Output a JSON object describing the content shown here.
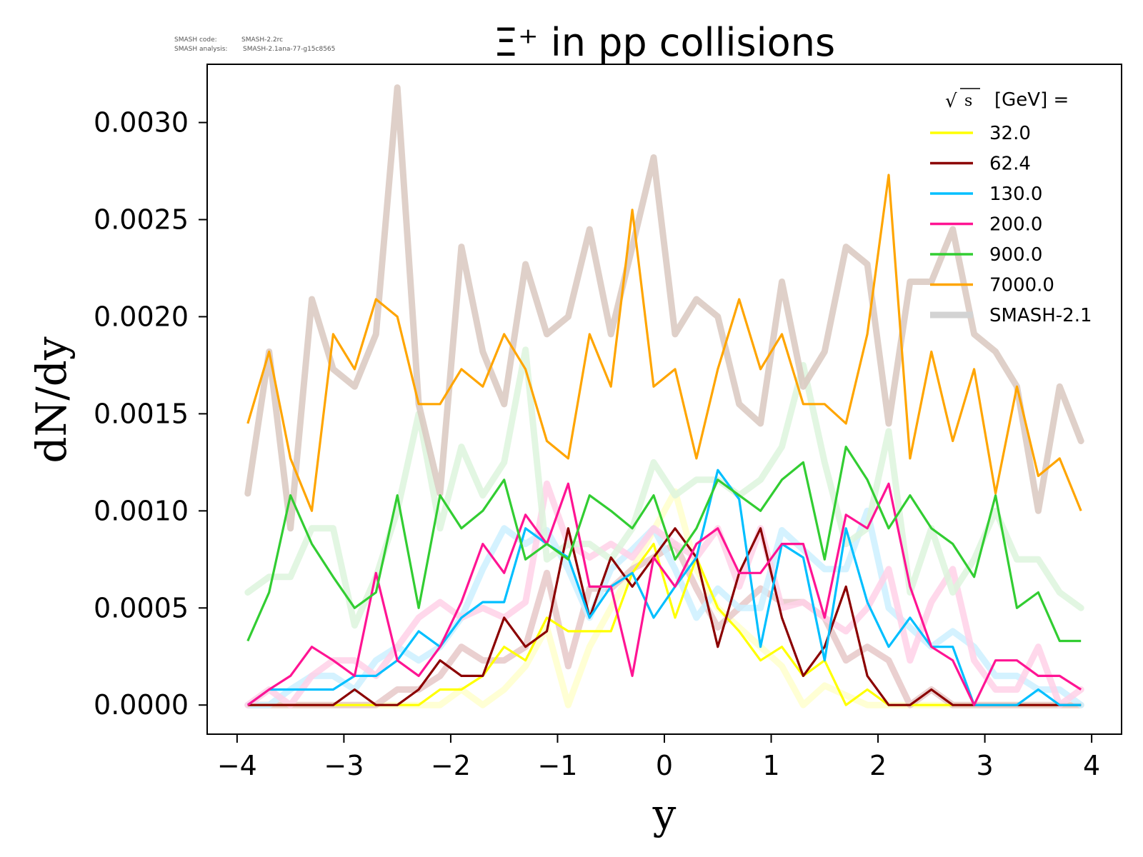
{
  "meta": {
    "smash_code_label": "SMASH code:",
    "smash_code_value": "SMASH-2.2rc",
    "smash_analysis_label": "SMASH analysis:",
    "smash_analysis_value": "SMASH-2.1ana-77-g15c8565"
  },
  "chart_data": {
    "type": "line",
    "title": "Ξ⁺ in pp collisions",
    "xlabel": "y",
    "ylabel": "dN/dy",
    "xlim": [
      -4.28,
      4.28
    ],
    "ylim": [
      -0.00015,
      0.0033
    ],
    "xticks": [
      -4,
      -3,
      -2,
      -1,
      0,
      1,
      2,
      3,
      4
    ],
    "xtick_labels": [
      "−4",
      "−3",
      "−2",
      "−1",
      "0",
      "1",
      "2",
      "3",
      "4"
    ],
    "yticks": [
      0,
      0.0005,
      0.001,
      0.0015,
      0.002,
      0.0025,
      0.003
    ],
    "ytick_labels": [
      "0.0000",
      "0.0005",
      "0.0010",
      "0.0015",
      "0.0020",
      "0.0025",
      "0.0030"
    ],
    "grid": false,
    "legend": {
      "placement": "top-right",
      "title_radical": "√",
      "title_symbol": "s",
      "title_rest": "[GeV] =",
      "reference_label": "SMASH-2.1",
      "reference_color": "#d3d3d3"
    },
    "x": [
      -3.9,
      -3.7,
      -3.5,
      -3.3,
      -3.1,
      -2.9,
      -2.7,
      -2.5,
      -2.3,
      -2.1,
      -1.9,
      -1.7,
      -1.5,
      -1.3,
      -1.1,
      -0.9,
      -0.7,
      -0.5,
      -0.3,
      -0.1,
      0.1,
      0.3,
      0.5,
      0.7,
      0.9,
      1.1,
      1.3,
      1.5,
      1.7,
      1.9,
      2.1,
      2.3,
      2.5,
      2.7,
      2.9,
      3.1,
      3.3,
      3.5,
      3.7,
      3.9
    ],
    "series": [
      {
        "name": "32.0",
        "color": "#ffff00",
        "ref_color": "#ffffcc",
        "values": [
          0,
          0,
          0,
          0,
          0,
          0,
          0,
          0,
          0,
          8e-05,
          8e-05,
          0.00015,
          0.0003,
          0.00023,
          0.00045,
          0.00038,
          0.00038,
          0.00038,
          0.00068,
          0.00083,
          0.00045,
          0.00076,
          0.0005,
          0.00038,
          0.00023,
          0.0003,
          0.00015,
          0.00023,
          0,
          8e-05,
          0,
          0,
          0,
          0,
          0,
          0,
          0,
          0,
          0,
          0
        ],
        "ref_values": [
          0,
          0,
          0,
          0,
          0,
          0,
          0,
          0,
          0,
          0,
          8e-05,
          0,
          8e-05,
          0.0002,
          0.0004,
          0,
          0.0003,
          0.0005,
          0.0007,
          0.0009,
          0.0011,
          0.0007,
          0.0005,
          0.0004,
          0.0003,
          0.0002,
          0,
          0.0001,
          5e-05,
          0,
          0,
          0,
          0,
          0,
          0,
          0,
          0,
          0,
          0,
          0
        ]
      },
      {
        "name": "62.4",
        "color": "#8b0000",
        "ref_color": "#e6c8c8",
        "values": [
          0,
          0,
          0,
          0,
          0,
          8e-05,
          0,
          0,
          8e-05,
          0.00023,
          0.00015,
          0.00015,
          0.00045,
          0.0003,
          0.00038,
          0.00091,
          0.00045,
          0.00076,
          0.00061,
          0.00076,
          0.00091,
          0.00076,
          0.0003,
          0.00068,
          0.00091,
          0.00045,
          0.00015,
          0.0003,
          0.00061,
          0.00015,
          0,
          0,
          8e-05,
          0,
          0,
          0,
          0,
          0,
          0,
          0
        ],
        "ref_values": [
          0,
          0,
          0,
          0,
          0,
          0,
          0,
          8e-05,
          8e-05,
          0.00015,
          0.0003,
          0.00023,
          0.00023,
          0.0003,
          0.00068,
          0.0002,
          0.0006,
          0.0006,
          0.0007,
          0.00076,
          0.00083,
          0.0006,
          0.0004,
          0.0005,
          0.0006,
          0.00053,
          0.00053,
          0.00045,
          0.00023,
          0.0003,
          0.00023,
          0,
          8e-05,
          0,
          0,
          0,
          0,
          0,
          0,
          0
        ]
      },
      {
        "name": "130.0",
        "color": "#00bfff",
        "ref_color": "#ccf0ff",
        "values": [
          0,
          8e-05,
          8e-05,
          8e-05,
          8e-05,
          0.00015,
          0.00015,
          0.00023,
          0.00038,
          0.0003,
          0.00045,
          0.00053,
          0.00053,
          0.00091,
          0.00083,
          0.00076,
          0.00045,
          0.00061,
          0.00068,
          0.00045,
          0.00061,
          0.00076,
          0.00121,
          0.00106,
          0.0003,
          0.00083,
          0.00076,
          0.00023,
          0.00091,
          0.00053,
          0.0003,
          0.00045,
          0.0003,
          0.0003,
          0,
          0,
          0,
          8e-05,
          0,
          0
        ],
        "ref_values": [
          0,
          0,
          8e-05,
          0.00015,
          0.00015,
          8e-05,
          0.00023,
          0.0003,
          0.00023,
          0.0003,
          0.00045,
          0.0007,
          0.00091,
          0.00083,
          0.0009,
          0.0007,
          0.00045,
          0.0007,
          0.0008,
          0.00091,
          0.0007,
          0.00045,
          0.0006,
          0.0005,
          0.0005,
          0.0009,
          0.0008,
          0.0007,
          0.0007,
          0.001,
          0.0005,
          0.0004,
          0.0003,
          0.00038,
          0.0003,
          0.00015,
          0.00015,
          8e-05,
          8e-05,
          0
        ],
        "_ref_note": "faded"
      },
      {
        "name": "200.0",
        "color": "#ff1493",
        "ref_color": "#ffd1e8",
        "values": [
          0,
          8e-05,
          0.00015,
          0.0003,
          0.00023,
          0.00015,
          0.00068,
          0.00023,
          0.00015,
          0.0003,
          0.00053,
          0.00083,
          0.00068,
          0.00098,
          0.00083,
          0.00114,
          0.00061,
          0.00061,
          0.00015,
          0.00076,
          0.00061,
          0.00083,
          0.00091,
          0.00068,
          0.00068,
          0.00083,
          0.00083,
          0.00045,
          0.00098,
          0.00091,
          0.00114,
          0.00061,
          0.0003,
          0.00023,
          0,
          0.00023,
          0.00023,
          0.00015,
          0.00015,
          8e-05
        ],
        "ref_values": [
          0,
          8e-05,
          0,
          0.00015,
          0.00023,
          0.00023,
          0.00015,
          0.0003,
          0.00045,
          0.00053,
          0.00045,
          0.0005,
          0.00045,
          0.00053,
          0.00114,
          0.00083,
          0.00076,
          0.00083,
          0.00076,
          0.00091,
          0.00083,
          0.00076,
          0.00091,
          0.00061,
          0.00091,
          0.0005,
          0.00053,
          0.00045,
          0.00038,
          0.0005,
          0.0007,
          0.00023,
          0.00053,
          0.0007,
          0.00023,
          8e-05,
          8e-05,
          0.0003,
          0,
          8e-05
        ]
      },
      {
        "name": "900.0",
        "color": "#32cd32",
        "ref_color": "#ddf5dd",
        "values": [
          0.00033,
          0.00058,
          0.00108,
          0.00083,
          0.00066,
          0.0005,
          0.00058,
          0.00108,
          0.0005,
          0.00108,
          0.00091,
          0.001,
          0.00116,
          0.00075,
          0.00083,
          0.00075,
          0.00108,
          0.001,
          0.00091,
          0.00108,
          0.00075,
          0.00091,
          0.00116,
          0.00108,
          0.001,
          0.00116,
          0.00125,
          0.00075,
          0.00133,
          0.00116,
          0.00091,
          0.00108,
          0.00091,
          0.00083,
          0.00066,
          0.00108,
          0.0005,
          0.00058,
          0.00033,
          0.00033
        ],
        "ref_values": [
          0.00058,
          0.00066,
          0.00066,
          0.00091,
          0.00091,
          0.00041,
          0.00066,
          0.001,
          0.0015,
          0.00091,
          0.00133,
          0.00108,
          0.00125,
          0.00183,
          0.00075,
          0.00083,
          0.00083,
          0.00075,
          0.00091,
          0.00125,
          0.00108,
          0.00116,
          0.00116,
          0.00108,
          0.00116,
          0.00133,
          0.00175,
          0.00125,
          0.00083,
          0.00091,
          0.00141,
          0.00058,
          0.00091,
          0.00058,
          0.00075,
          0.001,
          0.00075,
          0.00075,
          0.00058,
          0.0005
        ]
      },
      {
        "name": "7000.0",
        "color": "#ffa500",
        "ref_color": "#d9c8bf",
        "values": [
          0.00145,
          0.00182,
          0.00127,
          0.001,
          0.00191,
          0.00173,
          0.00209,
          0.002,
          0.00155,
          0.00155,
          0.00173,
          0.00164,
          0.00191,
          0.00173,
          0.00136,
          0.00127,
          0.00191,
          0.00164,
          0.00255,
          0.00164,
          0.00173,
          0.00127,
          0.00173,
          0.00209,
          0.00173,
          0.00191,
          0.00155,
          0.00155,
          0.00145,
          0.00191,
          0.00273,
          0.00127,
          0.00182,
          0.00136,
          0.00173,
          0.00109,
          0.00164,
          0.00118,
          0.00127,
          0.001
        ],
        "ref_values": [
          0.00109,
          0.00182,
          0.00091,
          0.00209,
          0.00173,
          0.00164,
          0.00191,
          0.00318,
          0.00155,
          0.00109,
          0.00236,
          0.00182,
          0.00155,
          0.00227,
          0.00191,
          0.002,
          0.00245,
          0.00191,
          0.00236,
          0.00282,
          0.00191,
          0.00209,
          0.002,
          0.00155,
          0.00145,
          0.00218,
          0.00164,
          0.00182,
          0.00236,
          0.00227,
          0.00145,
          0.00218,
          0.00218,
          0.00245,
          0.00191,
          0.00182,
          0.00164,
          0.001,
          0.00164,
          0.00136
        ]
      }
    ]
  }
}
